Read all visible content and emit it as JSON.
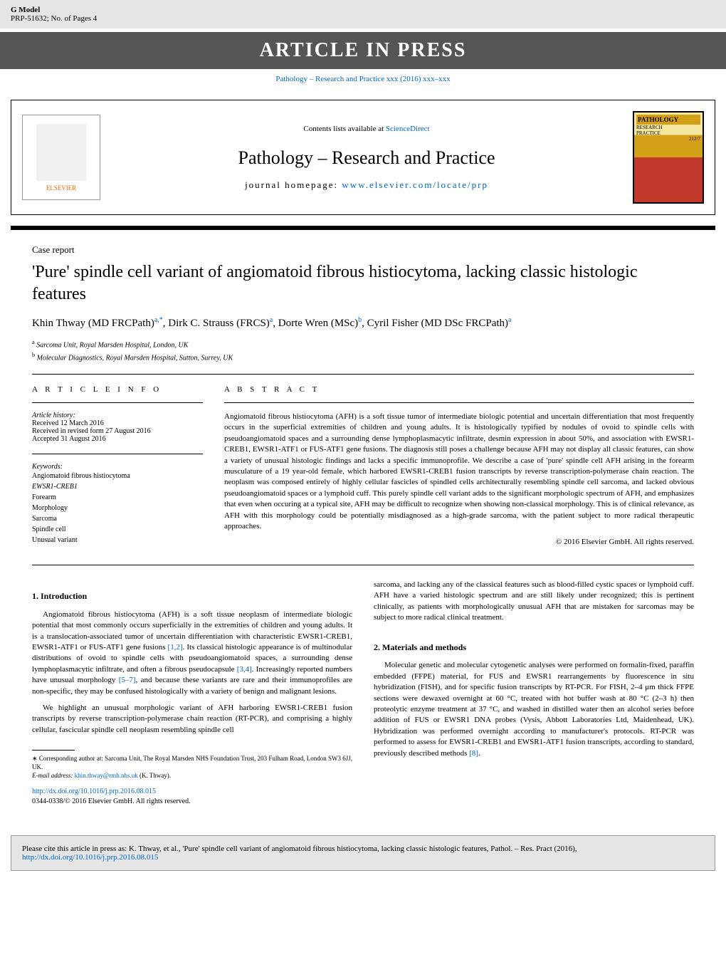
{
  "gmodel": {
    "label": "G Model",
    "code": "PRP-51632;   No. of Pages 4"
  },
  "header_banner": "ARTICLE IN PRESS",
  "journal_link": "Pathology – Research and Practice xxx (2016) xxx–xxx",
  "masthead": {
    "contents_text": "Contents lists available at ",
    "contents_link": "ScienceDirect",
    "journal_title": "Pathology – Research and Practice",
    "homepage_label": "journal homepage: ",
    "homepage_url": "www.elsevier.com/locate/prp",
    "elsevier_label": "ELSEVIER",
    "cover_title": "PATHOLOGY",
    "cover_sub1": "RESEARCH",
    "cover_sub2": "PRACTICE",
    "cover_vol": "212/7"
  },
  "article": {
    "type": "Case report",
    "title": "'Pure' spindle cell variant of angiomatoid fibrous histiocytoma, lacking classic histologic features",
    "authors_html": "Khin Thway (MD FRCPath)<sup>a,*</sup>, Dirk C. Strauss (FRCS)<sup>a</sup>, Dorte Wren (MSc)<sup>b</sup>, Cyril Fisher (MD DSc FRCPath)<sup>a</sup>",
    "affiliations": [
      {
        "sup": "a",
        "text": "Sarcoma Unit, Royal Marsden Hospital, London, UK"
      },
      {
        "sup": "b",
        "text": "Molecular Diagnostics, Royal Marsden Hospital, Sutton, Surrey, UK"
      }
    ]
  },
  "info": {
    "heading": "A R T I C L E    I N F O",
    "history_label": "Article history:",
    "received": "Received 12 March 2016",
    "revised": "Received in revised form 27 August 2016",
    "accepted": "Accepted 31 August 2016",
    "keywords_label": "Keywords:",
    "keywords": [
      "Angiomatoid fibrous histiocytoma",
      "EWSR1-CREB1",
      "Forearm",
      "Morphology",
      "Sarcoma",
      "Spindle cell",
      "Unusual variant"
    ]
  },
  "abstract": {
    "heading": "A B S T R A C T",
    "text": "Angiomatoid fibrous histiocytoma (AFH) is a soft tissue tumor of intermediate biologic potential and uncertain differentiation that most frequently occurs in the superficial extremities of children and young adults. It is histologically typified by nodules of ovoid to spindle cells with pseudoangiomatoid spaces and a surrounding dense lymphoplasmacytic infiltrate, desmin expression in about 50%, and association with EWSR1-CREB1, EWSR1-ATF1 or FUS-ATF1 gene fusions. The diagnosis still poses a challenge because AFH may not display all classic features, can show a variety of unusual histologic findings and lacks a specific immunoprofile. We describe a case of 'pure' spindle cell AFH arising in the forearm musculature of a 19 year-old female, which harbored EWSR1-CREB1 fusion transcripts by reverse transcription-polymerase chain reaction. The neoplasm was composed entirely of highly cellular fascicles of spindled cells architecturally resembling spindle cell sarcoma, and lacked obvious pseudoangiomatoid spaces or a lymphoid cuff. This purely spindle cell variant adds to the significant morphologic spectrum of AFH, and emphasizes that even when occuring at a typical site, AFH may be difficult to recognize when showing non-classical morphology. This is of clinical relevance, as AFH with this morphology could be potentially misdiagnosed as a high-grade sarcoma, with the patient subject to more radical therapeutic approaches.",
    "copyright": "© 2016 Elsevier GmbH. All rights reserved."
  },
  "sections": {
    "intro_heading": "1.  Introduction",
    "intro_p1": "Angiomatoid fibrous histiocytoma (AFH) is a soft tissue neoplasm of intermediate biologic potential that most commonly occurs superficially in the extremities of children and young adults. It is a translocation-associated tumor of uncertain differentiation with characteristic EWSR1-CREB1, EWSR1-ATF1 or FUS-ATF1 gene fusions ",
    "intro_ref1": "[1,2]",
    "intro_p1b": ". Its classical histologic appearance is of multinodular distributions of ovoid to spindle cells with pseudoangiomatoid spaces, a surrounding dense lymphoplasmacytic infiltrate, and often a fibrous pseudocapsule ",
    "intro_ref2": "[3,4]",
    "intro_p1c": ". Increasingly reported numbers have unusual morphology ",
    "intro_ref3": "[5–7]",
    "intro_p1d": ", and because these variants are rare and their immunoprofiles are non-specific, they may be confused histologically with a variety of benign and malignant lesions.",
    "intro_p2": "We highlight an unusual morphologic variant of AFH harboring EWSR1-CREB1 fusion transcripts by reverse transcription-polymerase chain reaction (RT-PCR), and comprising a highly cellular, fascicular spindle cell neoplasm resembling spindle cell",
    "col2_top": "sarcoma, and lacking any of the classical features such as blood-filled cystic spaces or lymphoid cuff. AFH have a varied histologic spectrum and are still likely under recognized; this is pertinent clinically, as patients with morphologically unusual AFH that are mistaken for sarcomas may be subject to more radical clinical treatment.",
    "methods_heading": "2.  Materials and methods",
    "methods_p1a": "Molecular genetic and molecular cytogenetic analyses were performed on formalin-fixed, paraffin embedded (FFPE) material, for FUS and EWSR1 rearrangements by fluorescence in situ hybridization (FISH), and for specific fusion transcripts by RT-PCR. For FISH, 2–4 μm thick FFPE sections were dewaxed overnight at 60 °C, treated with hot buffer wash at 80 °C (2–3 h) then proteolytic enzyme treatment at 37 °C, and washed in distilled water then an alcohol series before addition of FUS or EWSR1 DNA probes (Vysis, Abbott Laboratories Ltd, Maidenhead, UK). Hybridization was performed overnight according to manufacturer's protocols. RT-PCR was performed to assess for EWSR1-CREB1 and EWSR1-ATF1 fusion transcripts, according to standard, previously described methods ",
    "methods_ref": "[8]",
    "methods_p1b": "."
  },
  "footnote": {
    "corr": "∗ Corresponding author at: Sarcoma Unit, The Royal Marsden NHS Foundation Trust, 203 Fulham Road, London SW3 6JJ, UK.",
    "email_label": "E-mail address: ",
    "email": "khin.thway@rmh.nhs.uk",
    "email_name": " (K. Thway)."
  },
  "doi": {
    "url": "http://dx.doi.org/10.1016/j.prp.2016.08.015",
    "issn": "0344-0338/© 2016 Elsevier GmbH. All rights reserved."
  },
  "citation": {
    "text": "Please cite this article in press as: K. Thway, et al., 'Pure' spindle cell variant of angiomatoid fibrous histiocytoma, lacking classic histologic features, Pathol. – Res. Pract (2016), ",
    "url": "http://dx.doi.org/10.1016/j.prp.2016.08.015"
  }
}
